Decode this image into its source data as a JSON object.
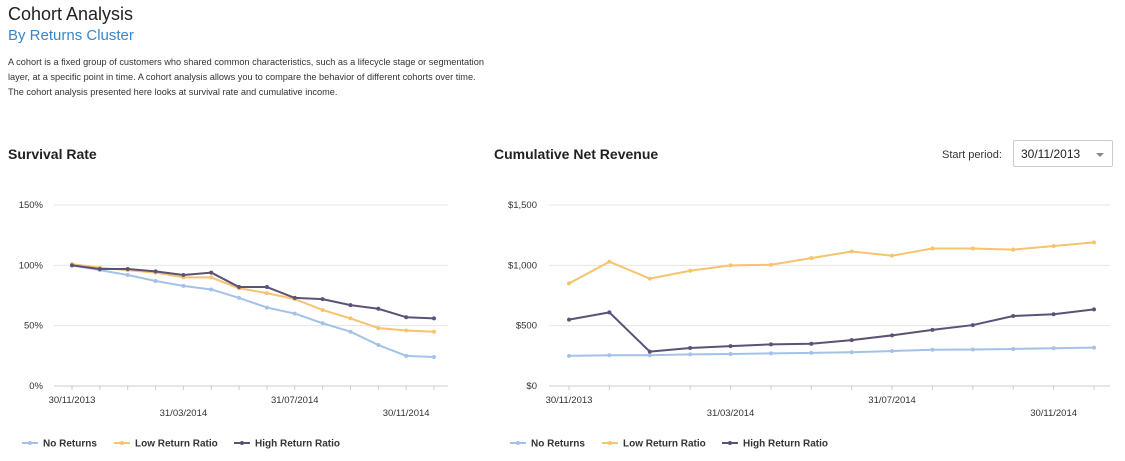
{
  "header": {
    "title": "Cohort Analysis",
    "subtitle": "By Returns Cluster",
    "description": [
      "A cohort is a fixed group of customers who shared common characteristics, such as a lifecycle stage or segmentation",
      "layer, at a specific point in time. A cohort analysis allows you to compare the behavior of different cohorts over time.",
      "The cohort analysis presented here looks at survival rate and cumulative income."
    ]
  },
  "controls": {
    "start_period_label": "Start period:",
    "start_period_value": "30/11/2013"
  },
  "colors": {
    "no_returns": "#a4c2e8",
    "low_return_ratio": "#f6c36e",
    "high_return_ratio": "#5c5277",
    "grid": "#e6e6e6"
  },
  "chart_data": [
    {
      "type": "line",
      "title": "Survival Rate",
      "x_labels": [
        "30/11/2013",
        "31/03/2014",
        "31/07/2014",
        "30/11/2014"
      ],
      "x_label_index": [
        0,
        4,
        8,
        12
      ],
      "y_ticks": [
        "0%",
        "50%",
        "100%",
        "150%"
      ],
      "ylim": [
        0,
        150
      ],
      "grid": true,
      "legend": "bottom",
      "series": [
        {
          "name": "No Returns",
          "color_key": "no_returns",
          "values": [
            100,
            96,
            92,
            87,
            83,
            80,
            73,
            65,
            60,
            52,
            45,
            34,
            25,
            24
          ]
        },
        {
          "name": "Low Return Ratio",
          "color_key": "low_return_ratio",
          "values": [
            101,
            98,
            96,
            94,
            90,
            90,
            81,
            77,
            72,
            63,
            56,
            48,
            46,
            45
          ]
        },
        {
          "name": "High Return Ratio",
          "color_key": "high_return_ratio",
          "values": [
            100,
            97,
            97,
            95,
            92,
            94,
            82,
            82,
            73,
            72,
            67,
            64,
            57,
            56
          ]
        }
      ]
    },
    {
      "type": "line",
      "title": "Cumulative Net Revenue",
      "x_labels": [
        "30/11/2013",
        "31/03/2014",
        "31/07/2014",
        "30/11/2014"
      ],
      "x_label_index": [
        0,
        4,
        8,
        12
      ],
      "y_ticks": [
        "$0",
        "$500",
        "$1,000",
        "$1,500"
      ],
      "ylim": [
        0,
        1500
      ],
      "grid": true,
      "legend": "bottom",
      "series": [
        {
          "name": "No Returns",
          "color_key": "no_returns",
          "values": [
            250,
            255,
            255,
            262,
            265,
            270,
            275,
            280,
            290,
            300,
            303,
            307,
            313,
            318
          ]
        },
        {
          "name": "Low Return Ratio",
          "color_key": "low_return_ratio",
          "values": [
            850,
            1030,
            890,
            955,
            1000,
            1005,
            1060,
            1115,
            1080,
            1140,
            1140,
            1130,
            1160,
            1190
          ]
        },
        {
          "name": "High Return Ratio",
          "color_key": "high_return_ratio",
          "values": [
            550,
            610,
            285,
            315,
            330,
            345,
            350,
            380,
            420,
            465,
            505,
            580,
            595,
            635
          ]
        }
      ]
    }
  ]
}
